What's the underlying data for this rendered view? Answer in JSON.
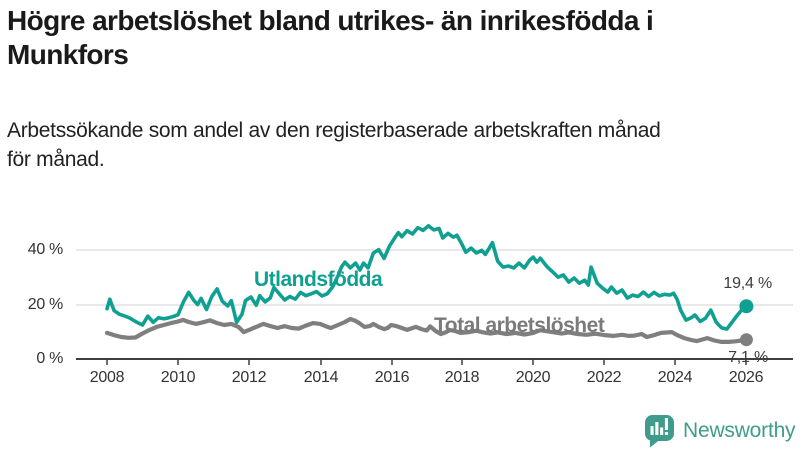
{
  "header": {
    "title_lines": [
      "Högre arbetslöshet bland utrikes- än inrikesfödda i",
      "Munkfors"
    ],
    "subtitle_lines": [
      "Arbetssökande som andel av den registerbaserade arbetskraften månad",
      "för månad."
    ]
  },
  "footer": {
    "brand": "Newsworthy",
    "brand_color": "#3f9c8c",
    "logo_icon": "bar-chart-speech-bubble-icon"
  },
  "chart_data": {
    "type": "line",
    "title": "Högre arbetslöshet bland utrikes- än inrikesfödda i Munkfors",
    "subtitle": "Arbetssökande som andel av den registerbaserade arbetskraften månad för månad.",
    "unit": "%",
    "grid": "horizontal",
    "legend_position": "inline-labels",
    "xlim": [
      2008,
      2026.3
    ],
    "ylim": [
      0,
      52
    ],
    "yticks": [
      {
        "value": 0,
        "label": "0 %"
      },
      {
        "value": 20,
        "label": "20 %"
      },
      {
        "value": 40,
        "label": "40 %"
      }
    ],
    "xticks": [
      {
        "value": 2008,
        "label": "2008"
      },
      {
        "value": 2010,
        "label": "2010"
      },
      {
        "value": 2012,
        "label": "2012"
      },
      {
        "value": 2014,
        "label": "2014"
      },
      {
        "value": 2016,
        "label": "2016"
      },
      {
        "value": 2018,
        "label": "2018"
      },
      {
        "value": 2020,
        "label": "2020"
      },
      {
        "value": 2022,
        "label": "2022"
      },
      {
        "value": 2024,
        "label": "2024"
      },
      {
        "value": 2026,
        "label": "2026"
      }
    ],
    "series": [
      {
        "id": "utlandsfodda",
        "name": "Utlandsfödda",
        "color": "#10a091",
        "line_width": 3.6,
        "dot_radius": 7,
        "end_value": 19.4,
        "end_label": "19,4 %",
        "points": [
          [
            2008.0,
            18.5
          ],
          [
            2008.08,
            22.0
          ],
          [
            2008.2,
            17.8
          ],
          [
            2008.35,
            16.5
          ],
          [
            2008.5,
            15.8
          ],
          [
            2008.65,
            15.0
          ],
          [
            2008.8,
            13.8
          ],
          [
            2009.0,
            12.5
          ],
          [
            2009.15,
            15.8
          ],
          [
            2009.3,
            13.5
          ],
          [
            2009.45,
            15.2
          ],
          [
            2009.6,
            14.8
          ],
          [
            2009.75,
            15.2
          ],
          [
            2009.9,
            15.8
          ],
          [
            2010.0,
            16.3
          ],
          [
            2010.15,
            21.0
          ],
          [
            2010.3,
            24.5
          ],
          [
            2010.45,
            21.5
          ],
          [
            2010.55,
            20.0
          ],
          [
            2010.65,
            22.3
          ],
          [
            2010.8,
            18.2
          ],
          [
            2010.95,
            23.0
          ],
          [
            2011.1,
            25.8
          ],
          [
            2011.25,
            21.2
          ],
          [
            2011.4,
            19.5
          ],
          [
            2011.5,
            21.5
          ],
          [
            2011.65,
            13.5
          ],
          [
            2011.8,
            16.5
          ],
          [
            2011.9,
            21.5
          ],
          [
            2012.05,
            22.8
          ],
          [
            2012.2,
            19.8
          ],
          [
            2012.3,
            23.3
          ],
          [
            2012.45,
            21.0
          ],
          [
            2012.6,
            22.5
          ],
          [
            2012.7,
            26.3
          ],
          [
            2012.85,
            24.0
          ],
          [
            2013.0,
            21.7
          ],
          [
            2013.15,
            23.0
          ],
          [
            2013.3,
            22.0
          ],
          [
            2013.45,
            24.5
          ],
          [
            2013.6,
            23.3
          ],
          [
            2013.75,
            24.0
          ],
          [
            2013.9,
            24.8
          ],
          [
            2014.05,
            23.2
          ],
          [
            2014.2,
            24.0
          ],
          [
            2014.35,
            26.5
          ],
          [
            2014.5,
            30.5
          ],
          [
            2014.6,
            33.8
          ],
          [
            2014.7,
            35.6
          ],
          [
            2014.85,
            33.5
          ],
          [
            2015.0,
            35.3
          ],
          [
            2015.12,
            32.7
          ],
          [
            2015.22,
            35.3
          ],
          [
            2015.35,
            33.5
          ],
          [
            2015.5,
            39.0
          ],
          [
            2015.65,
            40.2
          ],
          [
            2015.8,
            37.0
          ],
          [
            2015.95,
            41.5
          ],
          [
            2016.1,
            44.5
          ],
          [
            2016.2,
            46.5
          ],
          [
            2016.3,
            45.0
          ],
          [
            2016.45,
            47.2
          ],
          [
            2016.6,
            46.0
          ],
          [
            2016.75,
            48.3
          ],
          [
            2016.9,
            47.3
          ],
          [
            2017.05,
            49.0
          ],
          [
            2017.2,
            47.5
          ],
          [
            2017.35,
            48.0
          ],
          [
            2017.45,
            44.5
          ],
          [
            2017.6,
            46.2
          ],
          [
            2017.75,
            44.8
          ],
          [
            2017.85,
            45.5
          ],
          [
            2018.0,
            42.0
          ],
          [
            2018.1,
            39.3
          ],
          [
            2018.25,
            40.8
          ],
          [
            2018.4,
            39.0
          ],
          [
            2018.55,
            40.0
          ],
          [
            2018.65,
            38.5
          ],
          [
            2018.75,
            40.5
          ],
          [
            2018.85,
            42.8
          ],
          [
            2019.0,
            36.0
          ],
          [
            2019.15,
            33.8
          ],
          [
            2019.3,
            34.2
          ],
          [
            2019.45,
            33.5
          ],
          [
            2019.6,
            35.3
          ],
          [
            2019.75,
            33.5
          ],
          [
            2019.9,
            36.4
          ],
          [
            2020.0,
            37.5
          ],
          [
            2020.1,
            35.6
          ],
          [
            2020.2,
            37.1
          ],
          [
            2020.4,
            33.8
          ],
          [
            2020.55,
            32.0
          ],
          [
            2020.7,
            30.1
          ],
          [
            2020.85,
            30.9
          ],
          [
            2021.0,
            28.3
          ],
          [
            2021.15,
            29.8
          ],
          [
            2021.3,
            27.9
          ],
          [
            2021.45,
            29.0
          ],
          [
            2021.55,
            27.2
          ],
          [
            2021.63,
            33.8
          ],
          [
            2021.8,
            27.9
          ],
          [
            2021.95,
            26.1
          ],
          [
            2022.1,
            24.6
          ],
          [
            2022.2,
            26.5
          ],
          [
            2022.35,
            24.2
          ],
          [
            2022.5,
            25.4
          ],
          [
            2022.65,
            22.4
          ],
          [
            2022.8,
            23.5
          ],
          [
            2022.95,
            23.0
          ],
          [
            2023.1,
            24.6
          ],
          [
            2023.25,
            23.0
          ],
          [
            2023.4,
            24.5
          ],
          [
            2023.55,
            23.2
          ],
          [
            2023.7,
            23.8
          ],
          [
            2023.85,
            23.5
          ],
          [
            2023.95,
            24.2
          ],
          [
            2024.05,
            22.0
          ],
          [
            2024.15,
            18.0
          ],
          [
            2024.3,
            14.3
          ],
          [
            2024.45,
            15.2
          ],
          [
            2024.55,
            16.2
          ],
          [
            2024.7,
            13.8
          ],
          [
            2024.85,
            15.0
          ],
          [
            2025.0,
            18.0
          ],
          [
            2025.15,
            13.5
          ],
          [
            2025.3,
            11.5
          ],
          [
            2025.45,
            11.0
          ],
          [
            2025.6,
            13.6
          ],
          [
            2025.75,
            16.2
          ],
          [
            2025.9,
            18.5
          ],
          [
            2026.0,
            19.4
          ]
        ]
      },
      {
        "id": "total-arbetsloshet",
        "name": "Total arbetslöshet",
        "color": "#7f7f7f",
        "line_width": 4.2,
        "dot_radius": 6.5,
        "end_value": 7.1,
        "end_label": "7,1 %",
        "points": [
          [
            2008.0,
            9.6
          ],
          [
            2008.2,
            8.8
          ],
          [
            2008.4,
            8.1
          ],
          [
            2008.6,
            7.8
          ],
          [
            2008.8,
            7.9
          ],
          [
            2009.0,
            9.4
          ],
          [
            2009.2,
            10.7
          ],
          [
            2009.4,
            11.8
          ],
          [
            2009.6,
            12.5
          ],
          [
            2009.8,
            13.2
          ],
          [
            2010.0,
            13.8
          ],
          [
            2010.15,
            14.4
          ],
          [
            2010.3,
            13.6
          ],
          [
            2010.5,
            12.9
          ],
          [
            2010.7,
            13.5
          ],
          [
            2010.9,
            14.2
          ],
          [
            2011.1,
            13.2
          ],
          [
            2011.3,
            12.5
          ],
          [
            2011.5,
            12.9
          ],
          [
            2011.7,
            11.8
          ],
          [
            2011.85,
            9.9
          ],
          [
            2012.0,
            10.7
          ],
          [
            2012.2,
            11.8
          ],
          [
            2012.4,
            12.9
          ],
          [
            2012.6,
            12.1
          ],
          [
            2012.8,
            11.4
          ],
          [
            2013.0,
            12.1
          ],
          [
            2013.2,
            11.4
          ],
          [
            2013.4,
            11.2
          ],
          [
            2013.6,
            12.3
          ],
          [
            2013.8,
            13.2
          ],
          [
            2014.0,
            12.9
          ],
          [
            2014.15,
            12.1
          ],
          [
            2014.3,
            11.4
          ],
          [
            2014.5,
            12.5
          ],
          [
            2014.7,
            13.6
          ],
          [
            2014.85,
            14.7
          ],
          [
            2015.0,
            14.0
          ],
          [
            2015.1,
            13.2
          ],
          [
            2015.25,
            11.8
          ],
          [
            2015.4,
            12.1
          ],
          [
            2015.5,
            12.9
          ],
          [
            2015.65,
            11.8
          ],
          [
            2015.8,
            11.0
          ],
          [
            2015.9,
            11.4
          ],
          [
            2016.0,
            12.5
          ],
          [
            2016.15,
            12.1
          ],
          [
            2016.3,
            11.4
          ],
          [
            2016.45,
            10.7
          ],
          [
            2016.6,
            11.4
          ],
          [
            2016.7,
            11.8
          ],
          [
            2016.85,
            11.0
          ],
          [
            2017.0,
            10.5
          ],
          [
            2017.1,
            12.0
          ],
          [
            2017.25,
            10.3
          ],
          [
            2017.4,
            9.2
          ],
          [
            2017.55,
            9.9
          ],
          [
            2017.65,
            10.7
          ],
          [
            2017.8,
            10.3
          ],
          [
            2017.95,
            9.6
          ],
          [
            2018.2,
            9.9
          ],
          [
            2018.4,
            10.4
          ],
          [
            2018.6,
            9.8
          ],
          [
            2018.8,
            9.4
          ],
          [
            2019.0,
            9.8
          ],
          [
            2019.25,
            9.2
          ],
          [
            2019.5,
            9.6
          ],
          [
            2019.75,
            9.0
          ],
          [
            2020.0,
            9.6
          ],
          [
            2020.2,
            10.6
          ],
          [
            2020.4,
            10.2
          ],
          [
            2020.6,
            9.8
          ],
          [
            2020.8,
            9.4
          ],
          [
            2021.0,
            9.8
          ],
          [
            2021.25,
            9.2
          ],
          [
            2021.5,
            8.9
          ],
          [
            2021.75,
            9.3
          ],
          [
            2022.0,
            8.8
          ],
          [
            2022.25,
            8.5
          ],
          [
            2022.5,
            8.9
          ],
          [
            2022.7,
            8.5
          ],
          [
            2022.85,
            8.6
          ],
          [
            2023.05,
            9.2
          ],
          [
            2023.2,
            8.1
          ],
          [
            2023.4,
            8.8
          ],
          [
            2023.6,
            9.6
          ],
          [
            2023.9,
            9.9
          ],
          [
            2024.05,
            8.8
          ],
          [
            2024.25,
            7.7
          ],
          [
            2024.45,
            7.0
          ],
          [
            2024.6,
            6.6
          ],
          [
            2024.9,
            7.7
          ],
          [
            2025.1,
            6.8
          ],
          [
            2025.3,
            6.3
          ],
          [
            2025.5,
            6.3
          ],
          [
            2025.7,
            6.5
          ],
          [
            2025.85,
            6.8
          ],
          [
            2026.0,
            7.1
          ]
        ]
      }
    ]
  }
}
